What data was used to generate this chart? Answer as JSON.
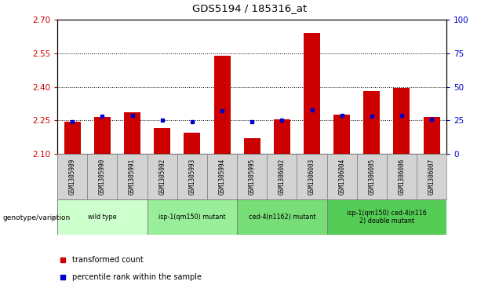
{
  "title": "GDS5194 / 185316_at",
  "samples": [
    "GSM1305989",
    "GSM1305990",
    "GSM1305991",
    "GSM1305992",
    "GSM1305993",
    "GSM1305994",
    "GSM1305995",
    "GSM1306002",
    "GSM1306003",
    "GSM1306004",
    "GSM1306005",
    "GSM1306006",
    "GSM1306007"
  ],
  "transformed_count": [
    2.245,
    2.265,
    2.285,
    2.215,
    2.195,
    2.54,
    2.17,
    2.255,
    2.64,
    2.275,
    2.38,
    2.395,
    2.265
  ],
  "percentile_rank": [
    24,
    28,
    29,
    25,
    24,
    32,
    24,
    25,
    33,
    29,
    28,
    29,
    26
  ],
  "ymin": 2.1,
  "ymax": 2.7,
  "y2min": 0,
  "y2max": 100,
  "yticks": [
    2.1,
    2.25,
    2.4,
    2.55,
    2.7
  ],
  "y2ticks": [
    0,
    25,
    50,
    75,
    100
  ],
  "grid_lines": [
    2.25,
    2.4,
    2.55
  ],
  "bar_color": "#cc0000",
  "blue_color": "#0000cc",
  "genotype_groups": [
    {
      "label": "wild type",
      "start": 0,
      "end": 3,
      "color": "#ccffcc"
    },
    {
      "label": "isp-1(qm150) mutant",
      "start": 3,
      "end": 6,
      "color": "#99ee99"
    },
    {
      "label": "ced-4(n1162) mutant",
      "start": 6,
      "end": 9,
      "color": "#77dd77"
    },
    {
      "label": "isp-1(qm150) ced-4(n116\n2) double mutant",
      "start": 9,
      "end": 13,
      "color": "#55cc55"
    }
  ],
  "legend_items": [
    {
      "label": "transformed count",
      "color": "#cc0000"
    },
    {
      "label": "percentile rank within the sample",
      "color": "#0000cc"
    }
  ],
  "fig_width": 6.36,
  "fig_height": 3.63
}
